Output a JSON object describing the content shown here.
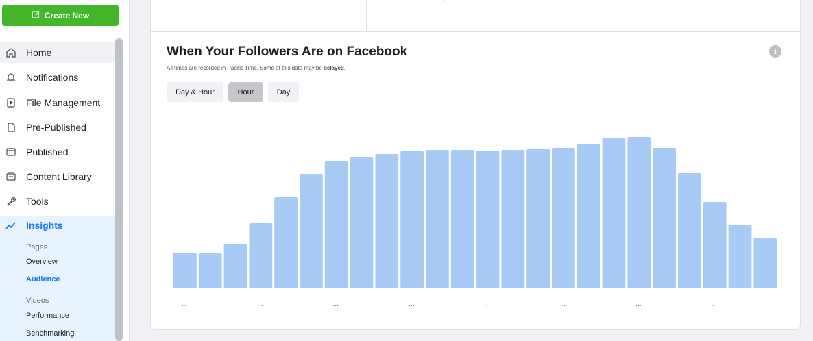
{
  "sidebar": {
    "create_label": "Create New",
    "items": [
      {
        "label": "Home",
        "icon": "home-icon"
      },
      {
        "label": "Notifications",
        "icon": "bell-icon"
      },
      {
        "label": "File Management",
        "icon": "file-play-icon"
      },
      {
        "label": "Pre-Published",
        "icon": "page-icon"
      },
      {
        "label": "Published",
        "icon": "window-icon"
      },
      {
        "label": "Content Library",
        "icon": "library-icon"
      },
      {
        "label": "Tools",
        "icon": "wrench-icon"
      },
      {
        "label": "Insights",
        "icon": "insights-icon"
      }
    ],
    "insights_sub": {
      "pages_heading": "Pages",
      "pages_items": [
        "Overview",
        "Audience"
      ],
      "videos_heading": "Videos",
      "videos_items": [
        "Performance",
        "Benchmarking"
      ],
      "active": "Audience"
    },
    "accent_color": "#1877f2",
    "create_color": "#42b72a"
  },
  "main": {
    "title": "When Your Followers Are on Facebook",
    "subtitle_prefix": "All times are recorded in Pacific Time. Some of this data may be ",
    "subtitle_bold": "delayed",
    "subtitle_suffix": ".",
    "tabs": [
      {
        "label": "Day & Hour",
        "selected": false
      },
      {
        "label": "Hour",
        "selected": true
      },
      {
        "label": "Day",
        "selected": false
      }
    ]
  },
  "chart_data": {
    "type": "bar",
    "title": "",
    "xlabel": "",
    "ylabel": "",
    "bar_color": "#a8cbf5",
    "categories": [
      "...",
      "",
      "",
      "...",
      "",
      "",
      "...",
      "",
      "",
      "...",
      "",
      "",
      "...",
      "",
      "",
      "...",
      "",
      "",
      "...",
      "",
      "",
      "...",
      "",
      ""
    ],
    "values": [
      52,
      51,
      64,
      95,
      133,
      167,
      186,
      192,
      196,
      200,
      202,
      202,
      201,
      202,
      203,
      205,
      211,
      220,
      221,
      205,
      169,
      126,
      92,
      73
    ],
    "ylim": [
      0,
      230
    ],
    "grid": false
  }
}
